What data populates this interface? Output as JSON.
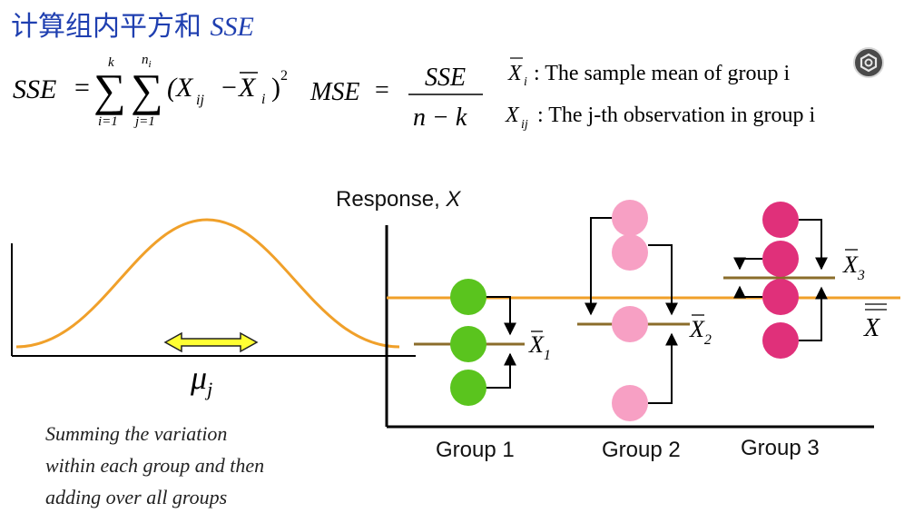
{
  "title": {
    "text": "计算组内平方和",
    "abbr": "SSE"
  },
  "formulas": {
    "sse_lhs": "SSE",
    "eq": "=",
    "sum_symbol": "∑",
    "sum1_upper": "k",
    "sum1_lower": "i=1",
    "sum2_upper": "n",
    "sum2_upper_sub": "i",
    "sum2_lower": "j=1",
    "term_open": "(X",
    "term_x_sub": "ij",
    "minus": "−",
    "mean_x": "X",
    "mean_x_sub": "i",
    "term_close": ")",
    "square": "2",
    "mse_lhs": "MSE",
    "mse_num": "SSE",
    "mse_den": "n − k"
  },
  "definitions": [
    {
      "symbol": "X",
      "sub": "i",
      "text": ": The sample mean of group i"
    },
    {
      "symbol": "X",
      "sub": "ij",
      "text": ":  The j-th observation in group i"
    }
  ],
  "distribution": {
    "mu_label": "μ",
    "mu_sub": "j",
    "curve_color": "#f0a02a",
    "arrow_fill": "#ffff33"
  },
  "description": [
    "Summing the variation",
    "within each group and then",
    "adding over all groups"
  ],
  "response_axis": {
    "label": "Response,",
    "var": "X"
  },
  "grand_mean": {
    "symbol": "X"
  },
  "groups": [
    {
      "label": "Group 1",
      "mean_symbol": "X",
      "mean_sub": "1",
      "color": "#5ac41e"
    },
    {
      "label": "Group 2",
      "mean_symbol": "X",
      "mean_sub": "2",
      "color": "#f7a0c4"
    },
    {
      "label": "Group 3",
      "mean_symbol": "X",
      "mean_sub": "3",
      "color": "#e0307a"
    }
  ],
  "colors": {
    "title": "#1f3fb0",
    "grand_mean_line": "#f0a02a",
    "group_mean_line": "#8b6d2b"
  },
  "icons": {
    "settings": "settings-icon"
  }
}
